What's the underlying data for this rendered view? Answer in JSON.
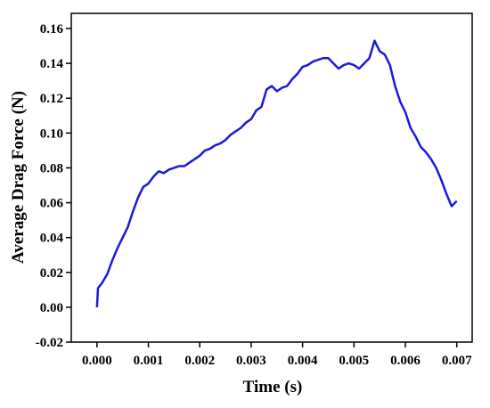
{
  "chart_data": {
    "type": "line",
    "x_label": "Time (s)",
    "y_label": "Average Drag Force (N)",
    "x": [
      0,
      2e-05,
      0.0001,
      0.0002,
      0.0003,
      0.0004,
      0.0005,
      0.0006,
      0.0007,
      0.0008,
      0.0009,
      0.001,
      0.0011,
      0.0012,
      0.0013,
      0.0014,
      0.0015,
      0.0016,
      0.0017,
      0.0018,
      0.0019,
      0.002,
      0.0021,
      0.0022,
      0.0023,
      0.0024,
      0.0025,
      0.0026,
      0.0027,
      0.0028,
      0.0029,
      0.003,
      0.0031,
      0.0032,
      0.0033,
      0.0034,
      0.0035,
      0.0036,
      0.0037,
      0.0038,
      0.0039,
      0.004,
      0.0041,
      0.0042,
      0.0043,
      0.0044,
      0.0045,
      0.0046,
      0.0047,
      0.0048,
      0.0049,
      0.005,
      0.0051,
      0.0052,
      0.0053,
      0.0054,
      0.0055,
      0.0056,
      0.0057,
      0.0058,
      0.0059,
      0.006,
      0.0061,
      0.0062,
      0.0063,
      0.0064,
      0.0065,
      0.0066,
      0.0067,
      0.0068,
      0.0069,
      0.007
    ],
    "series": [
      {
        "color": "#1a1adb",
        "values": [
          0.0,
          0.011,
          0.014,
          0.019,
          0.027,
          0.034,
          0.04,
          0.046,
          0.055,
          0.063,
          0.069,
          0.071,
          0.075,
          0.078,
          0.077,
          0.079,
          0.08,
          0.081,
          0.081,
          0.083,
          0.085,
          0.087,
          0.09,
          0.091,
          0.093,
          0.094,
          0.096,
          0.099,
          0.101,
          0.103,
          0.106,
          0.108,
          0.113,
          0.115,
          0.125,
          0.127,
          0.124,
          0.126,
          0.127,
          0.131,
          0.134,
          0.138,
          0.139,
          0.141,
          0.142,
          0.143,
          0.143,
          0.14,
          0.137,
          0.139,
          0.14,
          0.139,
          0.137,
          0.14,
          0.143,
          0.153,
          0.147,
          0.145,
          0.139,
          0.127,
          0.118,
          0.112,
          0.103,
          0.098,
          0.092,
          0.089,
          0.085,
          0.08,
          0.073,
          0.065,
          0.058,
          0.061
        ]
      }
    ],
    "xlim": [
      -0.0005,
      0.0073
    ],
    "ylim": [
      -0.02,
      0.1687
    ],
    "xticks": [
      {
        "value": 0,
        "label": "0.000"
      },
      0.001,
      0.002,
      0.003,
      0.004,
      0.005,
      0.006,
      0.007
    ],
    "yticks": [
      -0.02,
      {
        "value": 0,
        "label": "0.00"
      },
      0.02,
      0.04,
      0.06,
      0.08,
      {
        "value": 0.1,
        "label": "0.10"
      },
      0.12,
      0.14,
      0.16
    ]
  }
}
